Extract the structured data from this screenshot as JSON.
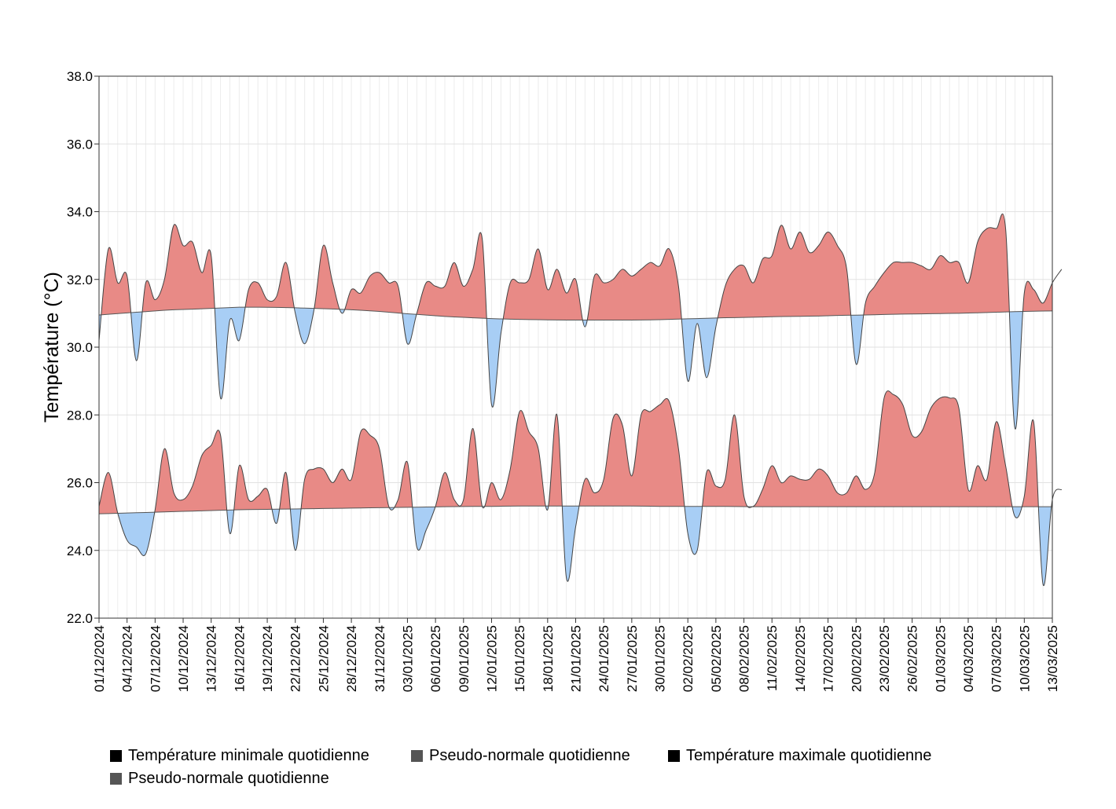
{
  "chart_data": {
    "type": "area",
    "title": "",
    "ylabel": "Température (°C)",
    "xlabel": "",
    "ylim": [
      22.0,
      38.0
    ],
    "yticks": [
      "22.0",
      "24.0",
      "26.0",
      "28.0",
      "30.0",
      "32.0",
      "34.0",
      "36.0",
      "38.0"
    ],
    "xlim": [
      "01/12/2024",
      "13/03/2025"
    ],
    "xticks": [
      "01/12/2024",
      "04/12/2024",
      "07/12/2024",
      "10/12/2024",
      "13/12/2024",
      "16/12/2024",
      "19/12/2024",
      "22/12/2024",
      "25/12/2024",
      "28/12/2024",
      "31/12/2024",
      "03/01/2025",
      "06/01/2025",
      "09/01/2025",
      "12/01/2025",
      "15/01/2025",
      "18/01/2025",
      "21/01/2025",
      "24/01/2025",
      "27/01/2025",
      "30/01/2025",
      "02/02/2025",
      "05/02/2025",
      "08/02/2025",
      "11/02/2025",
      "14/02/2025",
      "17/02/2025",
      "20/02/2025",
      "23/02/2025",
      "26/02/2025",
      "01/03/2025",
      "04/03/2025",
      "07/03/2025",
      "10/03/2025",
      "13/03/2025"
    ],
    "grid": true,
    "colors": {
      "above": "#e88a86",
      "below": "#a8cef5",
      "line": "#444444",
      "normal": "#555555"
    },
    "series": [
      {
        "name": "Température maximale quotidienne",
        "start": "01/12/2024",
        "values": [
          30.2,
          32.9,
          31.9,
          32.1,
          29.6,
          31.9,
          31.4,
          32.0,
          33.6,
          33.0,
          33.1,
          32.2,
          32.7,
          28.5,
          30.8,
          30.2,
          31.7,
          31.9,
          31.4,
          31.5,
          32.5,
          31.0,
          30.1,
          31.1,
          33.0,
          31.9,
          31.0,
          31.7,
          31.6,
          32.1,
          32.2,
          31.9,
          31.8,
          30.1,
          31.0,
          31.9,
          31.8,
          31.8,
          32.5,
          31.8,
          32.3,
          33.2,
          28.3,
          30.4,
          31.9,
          31.9,
          32.0,
          32.9,
          31.7,
          32.3,
          31.6,
          32.0,
          30.6,
          32.1,
          31.9,
          32.0,
          32.3,
          32.1,
          32.3,
          32.5,
          32.4,
          32.9,
          31.8,
          29.0,
          30.7,
          29.1,
          30.6,
          31.8,
          32.3,
          32.4,
          31.9,
          32.6,
          32.7,
          33.6,
          32.9,
          33.4,
          32.8,
          33.0,
          33.4,
          33.0,
          32.3,
          29.5,
          31.3,
          31.8,
          32.2,
          32.5,
          32.5,
          32.5,
          32.4,
          32.3,
          32.7,
          32.5,
          32.5,
          31.9,
          33.1,
          33.5,
          33.5,
          33.5,
          27.6,
          31.6,
          31.7,
          31.3,
          31.9,
          32.3
        ]
      },
      {
        "name": "Pseudo-normale quotidienne (max)",
        "start": "01/12/2024",
        "values": [
          30.95,
          31.0,
          31.05,
          31.1,
          31.12,
          31.15,
          31.18,
          31.18,
          31.17,
          31.15,
          31.13,
          31.1,
          31.06,
          31.0,
          30.95,
          30.9,
          30.87,
          30.84,
          30.82,
          30.81,
          30.8,
          30.8,
          30.8,
          30.8,
          30.81,
          30.83,
          30.85,
          30.87,
          30.88,
          30.9,
          30.91,
          30.92,
          30.94,
          30.95,
          30.97,
          30.98,
          30.99,
          31.0,
          31.02,
          31.04,
          31.06,
          31.07
        ]
      },
      {
        "name": "Température minimale quotidienne",
        "start": "01/12/2024",
        "values": [
          25.3,
          26.3,
          25.1,
          24.3,
          24.1,
          23.9,
          25.2,
          27.0,
          25.7,
          25.5,
          25.9,
          26.8,
          27.1,
          27.4,
          24.5,
          26.5,
          25.5,
          25.6,
          25.8,
          24.8,
          26.3,
          24.0,
          26.1,
          26.4,
          26.4,
          26.0,
          26.4,
          26.1,
          27.5,
          27.4,
          27.0,
          25.3,
          25.5,
          26.6,
          24.1,
          24.6,
          25.3,
          26.3,
          25.5,
          25.5,
          27.6,
          25.3,
          26.0,
          25.5,
          26.4,
          28.1,
          27.5,
          27.0,
          25.2,
          28.0,
          23.2,
          24.7,
          26.1,
          25.7,
          26.1,
          27.9,
          27.7,
          26.2,
          28.0,
          28.1,
          28.3,
          28.4,
          27.0,
          24.5,
          24.0,
          26.3,
          25.9,
          26.1,
          28.0,
          25.6,
          25.3,
          25.8,
          26.5,
          26.0,
          26.2,
          26.1,
          26.1,
          26.4,
          26.2,
          25.7,
          25.7,
          26.2,
          25.8,
          26.3,
          28.5,
          28.6,
          28.3,
          27.4,
          27.5,
          28.2,
          28.5,
          28.5,
          28.2,
          25.8,
          26.5,
          26.1,
          27.8,
          26.5,
          25.0,
          25.6,
          27.8,
          23.0,
          25.5,
          25.8
        ]
      },
      {
        "name": "Pseudo-normale quotidienne (min)",
        "start": "01/12/2024",
        "values": [
          25.08,
          25.1,
          25.12,
          25.14,
          25.16,
          25.18,
          25.2,
          25.21,
          25.22,
          25.23,
          25.24,
          25.25,
          25.26,
          25.27,
          25.28,
          25.29,
          25.3,
          25.3,
          25.31,
          25.31,
          25.31,
          25.31,
          25.31,
          25.31,
          25.3,
          25.3,
          25.3,
          25.3,
          25.29,
          25.29,
          25.29,
          25.29,
          25.29,
          25.29,
          25.29,
          25.29,
          25.29,
          25.29,
          25.29,
          25.29,
          25.29,
          25.29
        ]
      }
    ]
  },
  "legend": {
    "items": [
      {
        "label": "Température minimale quotidienne",
        "color": "#000000"
      },
      {
        "label": "Pseudo-normale quotidienne",
        "color": "#555555"
      },
      {
        "label": "Température maximale quotidienne",
        "color": "#000000"
      },
      {
        "label": "Pseudo-normale quotidienne",
        "color": "#555555"
      }
    ]
  }
}
